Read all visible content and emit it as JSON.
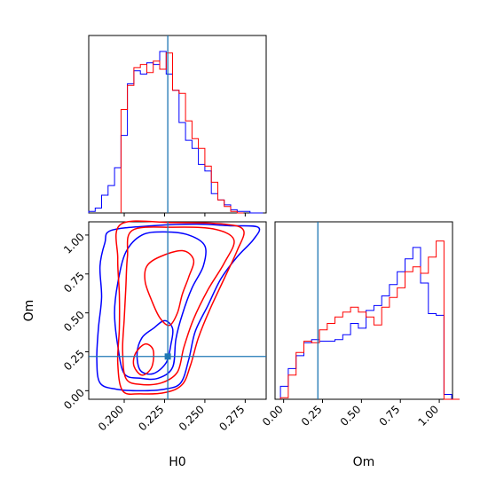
{
  "chart_data": {
    "type": "corner",
    "params": [
      "H0",
      "Om"
    ],
    "truth": {
      "H0": 0.227,
      "Om": 0.22
    },
    "colors": {
      "series_a": "#0000ff",
      "series_b": "#ff0000",
      "truth": "#1f77b4"
    },
    "axes": {
      "H0": {
        "label": "H0",
        "range": [
          0.178,
          0.288
        ],
        "ticks": [
          "0.200",
          "0.225",
          "0.250",
          "0.275"
        ]
      },
      "Om": {
        "label": "Om",
        "range": [
          -0.055,
          1.085
        ],
        "ticks": [
          "0.00",
          "0.25",
          "0.50",
          "0.75",
          "1.00"
        ]
      }
    },
    "hist_H0": {
      "bin_width": 0.004,
      "blue": {
        "start": 0.178,
        "values": [
          0.01,
          0.03,
          0.11,
          0.17,
          0.28,
          0.48,
          0.8,
          0.88,
          0.86,
          0.93,
          0.92,
          1.0,
          0.86,
          0.76,
          0.56,
          0.45,
          0.4,
          0.3,
          0.26,
          0.12,
          0.08,
          0.05,
          0.02,
          0.01,
          0.01,
          0.0,
          0.0
        ]
      },
      "red": {
        "start": 0.198,
        "values": [
          0.64,
          0.79,
          0.9,
          0.92,
          0.87,
          0.94,
          0.89,
          0.99,
          0.76,
          0.74,
          0.57,
          0.46,
          0.4,
          0.29,
          0.19,
          0.08,
          0.04,
          0.01,
          0.0
        ]
      }
    },
    "hist_Om": {
      "bin_width": 0.05,
      "blue": {
        "start": -0.02,
        "values": [
          0.08,
          0.19,
          0.27,
          0.35,
          0.37,
          0.36,
          0.36,
          0.37,
          0.4,
          0.47,
          0.44,
          0.55,
          0.58,
          0.64,
          0.71,
          0.79,
          0.87,
          0.94,
          0.72,
          0.53,
          0.52,
          0.03,
          0.0
        ]
      },
      "red": {
        "start": -0.02,
        "values": [
          0.01,
          0.15,
          0.29,
          0.36,
          0.35,
          0.43,
          0.47,
          0.51,
          0.54,
          0.57,
          0.54,
          0.51,
          0.46,
          0.57,
          0.63,
          0.69,
          0.79,
          0.82,
          0.78,
          0.88,
          0.98,
          0.0,
          0.0
        ]
      }
    },
    "contours": {
      "blue": [
        {
          "level": "inner",
          "points": [
            [
              0.211,
              0.34
            ],
            [
              0.218,
              0.4
            ],
            [
              0.225,
              0.45
            ],
            [
              0.23,
              0.4
            ],
            [
              0.229,
              0.3
            ],
            [
              0.226,
              0.18
            ],
            [
              0.218,
              0.11
            ],
            [
              0.21,
              0.13
            ],
            [
              0.208,
              0.24
            ]
          ]
        },
        {
          "level": "mid",
          "points": [
            [
              0.211,
              1.0
            ],
            [
              0.225,
              1.02
            ],
            [
              0.24,
              1.0
            ],
            [
              0.25,
              0.93
            ],
            [
              0.249,
              0.8
            ],
            [
              0.242,
              0.66
            ],
            [
              0.236,
              0.49
            ],
            [
              0.232,
              0.33
            ],
            [
              0.23,
              0.15
            ],
            [
              0.221,
              0.08
            ],
            [
              0.21,
              0.08
            ],
            [
              0.2,
              0.11
            ],
            [
              0.196,
              0.29
            ],
            [
              0.194,
              0.5
            ],
            [
              0.196,
              0.69
            ],
            [
              0.201,
              0.89
            ]
          ]
        },
        {
          "level": "outer",
          "points": [
            [
              0.192,
              1.03
            ],
            [
              0.218,
              1.06
            ],
            [
              0.245,
              1.07
            ],
            [
              0.265,
              1.06
            ],
            [
              0.283,
              1.05
            ],
            [
              0.28,
              0.97
            ],
            [
              0.27,
              0.86
            ],
            [
              0.26,
              0.72
            ],
            [
              0.252,
              0.55
            ],
            [
              0.244,
              0.38
            ],
            [
              0.24,
              0.2
            ],
            [
              0.235,
              0.05
            ],
            [
              0.225,
              0.01
            ],
            [
              0.21,
              0.0
            ],
            [
              0.195,
              0.01
            ],
            [
              0.185,
              0.05
            ],
            [
              0.183,
              0.2
            ],
            [
              0.184,
              0.4
            ],
            [
              0.186,
              0.6
            ],
            [
              0.185,
              0.8
            ],
            [
              0.188,
              0.95
            ]
          ]
        }
      ],
      "red": [
        {
          "level": "inner",
          "points": [
            [
              0.214,
              0.8
            ],
            [
              0.222,
              0.86
            ],
            [
              0.236,
              0.9
            ],
            [
              0.243,
              0.84
            ],
            [
              0.24,
              0.73
            ],
            [
              0.236,
              0.62
            ],
            [
              0.233,
              0.5
            ],
            [
              0.228,
              0.42
            ],
            [
              0.222,
              0.47
            ],
            [
              0.217,
              0.58
            ],
            [
              0.213,
              0.7
            ]
          ]
        },
        {
          "level": "inner2",
          "points": [
            [
              0.207,
              0.24
            ],
            [
              0.213,
              0.3
            ],
            [
              0.218,
              0.26
            ],
            [
              0.217,
              0.15
            ],
            [
              0.211,
              0.1
            ],
            [
              0.206,
              0.16
            ]
          ]
        },
        {
          "level": "mid",
          "points": [
            [
              0.205,
              1.03
            ],
            [
              0.23,
              1.05
            ],
            [
              0.255,
              1.04
            ],
            [
              0.268,
              0.97
            ],
            [
              0.262,
              0.82
            ],
            [
              0.252,
              0.65
            ],
            [
              0.243,
              0.46
            ],
            [
              0.237,
              0.28
            ],
            [
              0.233,
              0.12
            ],
            [
              0.223,
              0.05
            ],
            [
              0.21,
              0.04
            ],
            [
              0.201,
              0.08
            ],
            [
              0.199,
              0.26
            ],
            [
              0.2,
              0.46
            ],
            [
              0.201,
              0.66
            ],
            [
              0.202,
              0.86
            ]
          ]
        },
        {
          "level": "outer",
          "points": [
            [
              0.198,
              1.07
            ],
            [
              0.23,
              1.08
            ],
            [
              0.262,
              1.07
            ],
            [
              0.274,
              1.03
            ],
            [
              0.27,
              0.9
            ],
            [
              0.262,
              0.72
            ],
            [
              0.253,
              0.52
            ],
            [
              0.246,
              0.34
            ],
            [
              0.241,
              0.16
            ],
            [
              0.236,
              0.04
            ],
            [
              0.226,
              -0.01
            ],
            [
              0.21,
              -0.02
            ],
            [
              0.199,
              0.0
            ],
            [
              0.196,
              0.18
            ],
            [
              0.197,
              0.4
            ],
            [
              0.197,
              0.62
            ],
            [
              0.196,
              0.85
            ]
          ]
        }
      ]
    }
  }
}
